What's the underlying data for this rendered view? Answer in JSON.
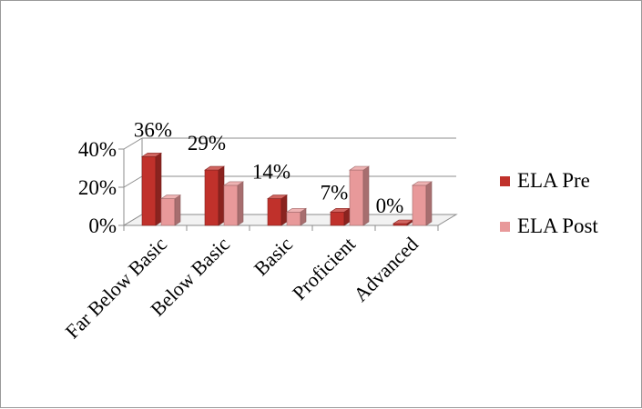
{
  "chart_data": {
    "type": "bar",
    "title": "",
    "xlabel": "",
    "ylabel": "",
    "categories": [
      "Far Below Basic",
      "Below Basic",
      "Basic",
      "Proficient",
      "Advanced"
    ],
    "series": [
      {
        "name": "ELA Pre",
        "values": [
          36,
          29,
          14,
          7,
          0
        ],
        "color": "#c0312b"
      },
      {
        "name": "ELA Post",
        "values": [
          14,
          21,
          7,
          29,
          21
        ],
        "color": "#e8999a"
      }
    ],
    "data_labels": {
      "series": "ELA Pre",
      "values": [
        "36%",
        "29%",
        "14%",
        "7%",
        "0%"
      ]
    },
    "y_ticks": [
      "0%",
      "20%",
      "40%"
    ],
    "ylim": [
      0,
      40
    ],
    "grid": true,
    "three_d": true,
    "legend": {
      "placement": "right"
    }
  }
}
